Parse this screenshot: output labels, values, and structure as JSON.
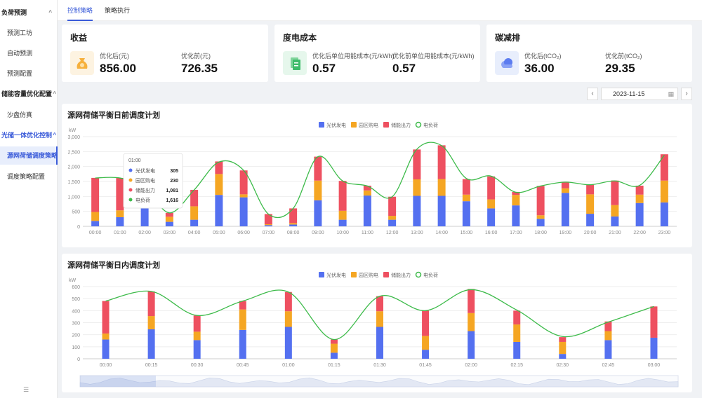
{
  "sidebar": {
    "items": [
      {
        "label": "负荷预测",
        "type": "group",
        "top": 0
      },
      {
        "label": "预测工坊",
        "type": "sub"
      },
      {
        "label": "自动预测",
        "type": "sub"
      },
      {
        "label": "预测配置",
        "type": "sub"
      },
      {
        "label": "储能容量优化配置",
        "type": "group"
      },
      {
        "label": "沙盘仿真",
        "type": "sub"
      },
      {
        "label": "光储一体优化控制",
        "type": "group-active"
      },
      {
        "label": "源网荷储调度策略",
        "type": "sub-active"
      },
      {
        "label": "调度策略配置",
        "type": "sub"
      }
    ],
    "collapse_icon": "collapse-icon"
  },
  "tabs": [
    {
      "label": "控制策略",
      "active": true
    },
    {
      "label": "策略执行",
      "active": false
    }
  ],
  "cards": {
    "revenue": {
      "title": "收益",
      "after_label": "优化后(元)",
      "after_value": "856.00",
      "before_label": "优化前(元)",
      "before_value": "726.35",
      "icon": "money-bag-icon"
    },
    "cost": {
      "title": "度电成本",
      "after_label": "优化后单位用能成本(元/kWh)",
      "after_value": "0.57",
      "before_label": "优化前单位用能成本(元/kWh)",
      "before_value": "0.57",
      "icon": "document-icon"
    },
    "carbon": {
      "title": "碳减排",
      "after_label": "优化后(tCO₂)",
      "after_value": "36.00",
      "before_label": "优化前(tCO₂)",
      "before_value": "29.35",
      "icon": "cloud-icon"
    }
  },
  "date_picker": {
    "value": "2023-11-15",
    "prev": "‹",
    "next": "›",
    "icon": "calendar-icon"
  },
  "colors": {
    "pv": "#5470f0",
    "grid": "#f5a623",
    "storage": "#ee5060",
    "load": "#3dbb4a",
    "accent": "#3a5bd9"
  },
  "chart_data": [
    {
      "type": "bar",
      "title": "源网荷储平衡日前调度计划",
      "ylabel": "kW",
      "ylim": [
        0,
        3000
      ],
      "yticks": [
        "0",
        "500",
        "1,000",
        "1,500",
        "2,000",
        "2,500",
        "3,000"
      ],
      "categories": [
        "00:00",
        "01:00",
        "02:00",
        "03:00",
        "04:00",
        "05:00",
        "06:00",
        "07:00",
        "08:00",
        "09:00",
        "10:00",
        "11:00",
        "12:00",
        "13:00",
        "14:00",
        "15:00",
        "16:00",
        "17:00",
        "18:00",
        "19:00",
        "20:00",
        "21:00",
        "22:00",
        "23:00"
      ],
      "series": [
        {
          "name": "光伏发电",
          "values": [
            180,
            305,
            1000,
            150,
            220,
            1050,
            970,
            40,
            60,
            870,
            220,
            1030,
            220,
            1020,
            1020,
            840,
            600,
            700,
            250,
            1120,
            420,
            330,
            780,
            800
          ]
        },
        {
          "name": "园区购电",
          "values": [
            300,
            230,
            500,
            170,
            450,
            700,
            100,
            30,
            50,
            660,
            300,
            170,
            130,
            550,
            560,
            220,
            300,
            350,
            120,
            150,
            650,
            380,
            280,
            730
          ]
        },
        {
          "name": "储能出力",
          "values": [
            1140,
            1081,
            300,
            130,
            550,
            420,
            800,
            340,
            490,
            800,
            1000,
            160,
            640,
            1000,
            1130,
            520,
            770,
            100,
            980,
            220,
            320,
            820,
            300,
            880
          ]
        }
      ],
      "line": {
        "name": "电负荷",
        "values": [
          1616,
          1616,
          1300,
          450,
          1220,
          2150,
          1870,
          410,
          600,
          2330,
          1520,
          1350,
          990,
          2580,
          2700,
          1600,
          1680,
          1140,
          1350,
          1480,
          1390,
          1520,
          1370,
          2380
        ]
      },
      "legend": [
        "光伏发电",
        "园区购电",
        "储能出力",
        "电负荷"
      ],
      "legend_position": "top-center",
      "tooltip": {
        "time": "01:00",
        "rows": [
          {
            "name": "光伏发电",
            "value": "305"
          },
          {
            "name": "园区购电",
            "value": "230"
          },
          {
            "name": "储能出力",
            "value": "1,081"
          },
          {
            "name": "电负荷",
            "value": "1,616"
          }
        ]
      }
    },
    {
      "type": "bar",
      "title": "源网荷储平衡日内调度计划",
      "ylabel": "kW",
      "ylim": [
        0,
        600
      ],
      "yticks": [
        "0",
        "100",
        "200",
        "300",
        "400",
        "500",
        "600"
      ],
      "categories": [
        "00:00",
        "00:15",
        "00:30",
        "00:45",
        "01:00",
        "01:15",
        "01:30",
        "01:45",
        "02:00",
        "02:15",
        "02:30",
        "02:45",
        "03:00"
      ],
      "series": [
        {
          "name": "光伏发电",
          "values": [
            160,
            245,
            155,
            240,
            265,
            50,
            265,
            75,
            230,
            140,
            40,
            155,
            175
          ]
        },
        {
          "name": "园区购电",
          "values": [
            50,
            110,
            70,
            170,
            130,
            75,
            130,
            115,
            150,
            145,
            100,
            75,
            0
          ]
        },
        {
          "name": "储能出力",
          "values": [
            270,
            205,
            135,
            70,
            160,
            35,
            125,
            210,
            200,
            115,
            40,
            80,
            260
          ]
        }
      ],
      "line": {
        "name": "电负荷",
        "values": [
          480,
          560,
          360,
          480,
          555,
          160,
          520,
          400,
          575,
          405,
          185,
          305,
          435
        ]
      },
      "legend": [
        "光伏发电",
        "园区购电",
        "储能出力",
        "电负荷"
      ],
      "legend_position": "top-center"
    }
  ]
}
